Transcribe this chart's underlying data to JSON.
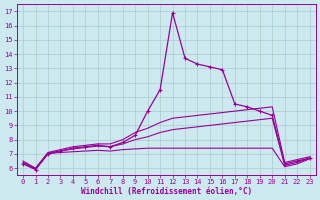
{
  "xlabel": "Windchill (Refroidissement éolien,°C)",
  "xlim": [
    -0.5,
    23.5
  ],
  "ylim": [
    5.5,
    17.5
  ],
  "xticks": [
    0,
    1,
    2,
    3,
    4,
    5,
    6,
    7,
    8,
    9,
    10,
    11,
    12,
    13,
    14,
    15,
    16,
    17,
    18,
    19,
    20,
    21,
    22,
    23
  ],
  "yticks": [
    6,
    7,
    8,
    9,
    10,
    11,
    12,
    13,
    14,
    15,
    16,
    17
  ],
  "bg_color": "#cce9f0",
  "grid_color": "#aacccc",
  "line_color": "#990099",
  "series": {
    "main": {
      "x": [
        0,
        1,
        2,
        3,
        4,
        5,
        6,
        7,
        8,
        9,
        10,
        11,
        12,
        13,
        14,
        15,
        16,
        17,
        18,
        19,
        20,
        21,
        22,
        23
      ],
      "y": [
        6.3,
        5.9,
        7.0,
        7.2,
        7.4,
        7.5,
        7.6,
        7.5,
        7.8,
        8.3,
        10.0,
        11.5,
        16.9,
        13.7,
        13.3,
        13.1,
        12.9,
        10.5,
        10.3,
        10.0,
        9.7,
        6.3,
        6.5,
        6.7
      ]
    },
    "trend_upper": {
      "x": [
        0,
        1,
        2,
        3,
        4,
        5,
        6,
        7,
        8,
        9,
        10,
        11,
        12,
        13,
        14,
        15,
        16,
        17,
        18,
        19,
        20,
        21,
        22,
        23
      ],
      "y": [
        6.5,
        6.0,
        7.1,
        7.3,
        7.5,
        7.6,
        7.7,
        7.7,
        8.0,
        8.5,
        8.8,
        9.2,
        9.5,
        9.6,
        9.7,
        9.8,
        9.9,
        10.0,
        10.1,
        10.2,
        10.3,
        6.4,
        6.6,
        6.8
      ]
    },
    "trend_lower": {
      "x": [
        0,
        1,
        2,
        3,
        4,
        5,
        6,
        7,
        8,
        9,
        10,
        11,
        12,
        13,
        14,
        15,
        16,
        17,
        18,
        19,
        20,
        21,
        22,
        23
      ],
      "y": [
        6.4,
        5.95,
        7.05,
        7.2,
        7.35,
        7.45,
        7.55,
        7.5,
        7.7,
        8.0,
        8.2,
        8.5,
        8.7,
        8.8,
        8.9,
        9.0,
        9.1,
        9.2,
        9.3,
        9.4,
        9.5,
        6.2,
        6.4,
        6.7
      ]
    },
    "flat": {
      "x": [
        0,
        1,
        2,
        3,
        4,
        5,
        6,
        7,
        8,
        9,
        10,
        11,
        12,
        13,
        14,
        15,
        16,
        17,
        18,
        19,
        20,
        21,
        22,
        23
      ],
      "y": [
        6.35,
        5.92,
        7.02,
        7.1,
        7.15,
        7.2,
        7.25,
        7.2,
        7.3,
        7.35,
        7.4,
        7.4,
        7.4,
        7.4,
        7.4,
        7.4,
        7.4,
        7.4,
        7.4,
        7.4,
        7.4,
        6.1,
        6.3,
        6.65
      ]
    }
  }
}
